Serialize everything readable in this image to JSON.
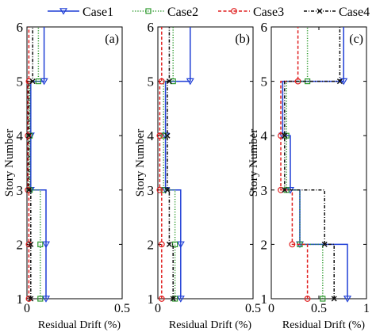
{
  "chart_data": {
    "type": "line",
    "legend_position": "top",
    "y_axis_label": "Story Number",
    "x_axis_label": "Residual Drift (%)",
    "series": [
      {
        "name": "Case1",
        "color": "#1f3fd6",
        "dash": "solid",
        "marker": "triangle-down"
      },
      {
        "name": "Case2",
        "color": "#2e9a2e",
        "dash": "dotted",
        "marker": "square"
      },
      {
        "name": "Case3",
        "color": "#e02020",
        "dash": "dashed",
        "marker": "circle"
      },
      {
        "name": "Case4",
        "color": "#111111",
        "dash": "dashdot",
        "marker": "x"
      }
    ],
    "panels": [
      {
        "label": "(a)",
        "xlim": [
          0,
          0.5
        ],
        "ylim": [
          1,
          6
        ],
        "xticks": [
          0,
          0.5
        ],
        "xtick_labels": [
          "0",
          "0.5"
        ],
        "yticks": [
          1,
          2,
          3,
          4,
          5,
          6
        ],
        "ytick_labels": [
          "1",
          "2",
          "3",
          "4",
          "5",
          "6"
        ],
        "drift": [
          [
            0.1,
            0.1,
            0.02,
            0.02,
            0.09
          ],
          [
            0.07,
            0.07,
            0.015,
            0.015,
            0.06
          ],
          [
            0.01,
            0.01,
            0.005,
            0.005,
            0.01
          ],
          [
            0.02,
            0.02,
            0.01,
            0.01,
            0.03
          ]
        ]
      },
      {
        "label": "(b)",
        "xlim": [
          0,
          0.5
        ],
        "ylim": [
          1,
          6
        ],
        "xticks": [
          0,
          0.5
        ],
        "xtick_labels": [
          "0",
          "0.5"
        ],
        "yticks": [
          1,
          2,
          3,
          4,
          5,
          6
        ],
        "ytick_labels": [
          "1",
          "2",
          "3",
          "4",
          "5",
          "6"
        ],
        "drift": [
          [
            0.12,
            0.12,
            0.04,
            0.04,
            0.17
          ],
          [
            0.09,
            0.09,
            0.03,
            0.03,
            0.08
          ],
          [
            0.02,
            0.02,
            0.01,
            0.01,
            0.02
          ],
          [
            0.08,
            0.06,
            0.05,
            0.05,
            0.06
          ]
        ]
      },
      {
        "label": "(c)",
        "xlim": [
          0,
          1
        ],
        "ylim": [
          1,
          6
        ],
        "xticks": [
          0,
          0.5,
          1
        ],
        "xtick_labels": [
          "0",
          "0.5",
          "1"
        ],
        "yticks": [
          1,
          2,
          3,
          4,
          5,
          6
        ],
        "ytick_labels": [
          "1",
          "2",
          "3",
          "4",
          "5",
          "6"
        ],
        "drift": [
          [
            0.8,
            0.3,
            0.2,
            0.12,
            0.76
          ],
          [
            0.54,
            0.3,
            0.16,
            0.16,
            0.38
          ],
          [
            0.38,
            0.22,
            0.1,
            0.1,
            0.28
          ],
          [
            0.66,
            0.56,
            0.14,
            0.14,
            0.72
          ]
        ]
      }
    ]
  }
}
